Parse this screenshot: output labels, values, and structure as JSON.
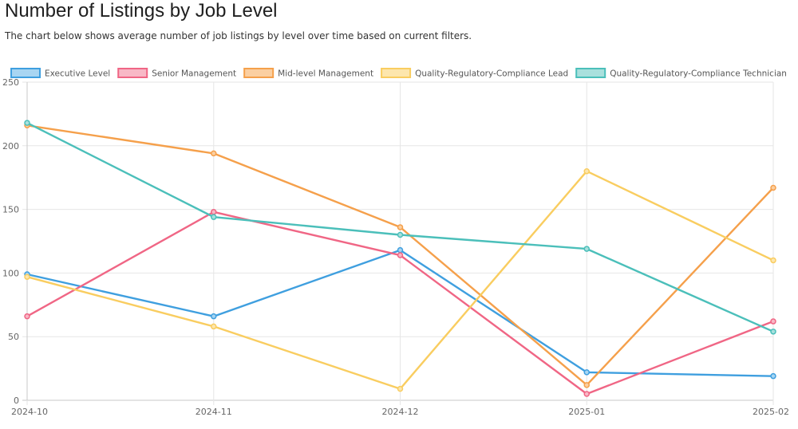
{
  "header": {
    "title": "Number of Listings by Job Level",
    "subtitle": "The chart below shows average number of job listings by level over time based on current filters."
  },
  "chart_data": {
    "type": "line",
    "title": "",
    "xlabel": "",
    "ylabel": "",
    "x": [
      "2024-10",
      "2024-11",
      "2024-12",
      "2025-01",
      "2025-02"
    ],
    "ylim": [
      0,
      250
    ],
    "yticks": [
      0,
      50,
      100,
      150,
      200,
      250
    ],
    "grid": true,
    "legend_position": "top",
    "series": [
      {
        "name": "Executive Level",
        "color": "#3f9fdf",
        "fill": "#a8d5f2",
        "values": [
          99,
          66,
          118,
          22,
          19
        ]
      },
      {
        "name": "Senior Management",
        "color": "#f06685",
        "fill": "#f8b8c6",
        "values": [
          66,
          148,
          114,
          5,
          62
        ]
      },
      {
        "name": "Mid-level Management",
        "color": "#f5a04b",
        "fill": "#fbcfa1",
        "values": [
          216,
          194,
          136,
          12,
          167
        ]
      },
      {
        "name": "Quality-Regulatory-Compliance Lead",
        "color": "#f9cd60",
        "fill": "#fde6ad",
        "values": [
          97,
          58,
          9,
          180,
          110
        ]
      },
      {
        "name": "Quality-Regulatory-Compliance Technician",
        "color": "#4bbfba",
        "fill": "#a9e0dd",
        "values": [
          218,
          144,
          130,
          119,
          54
        ]
      }
    ]
  }
}
